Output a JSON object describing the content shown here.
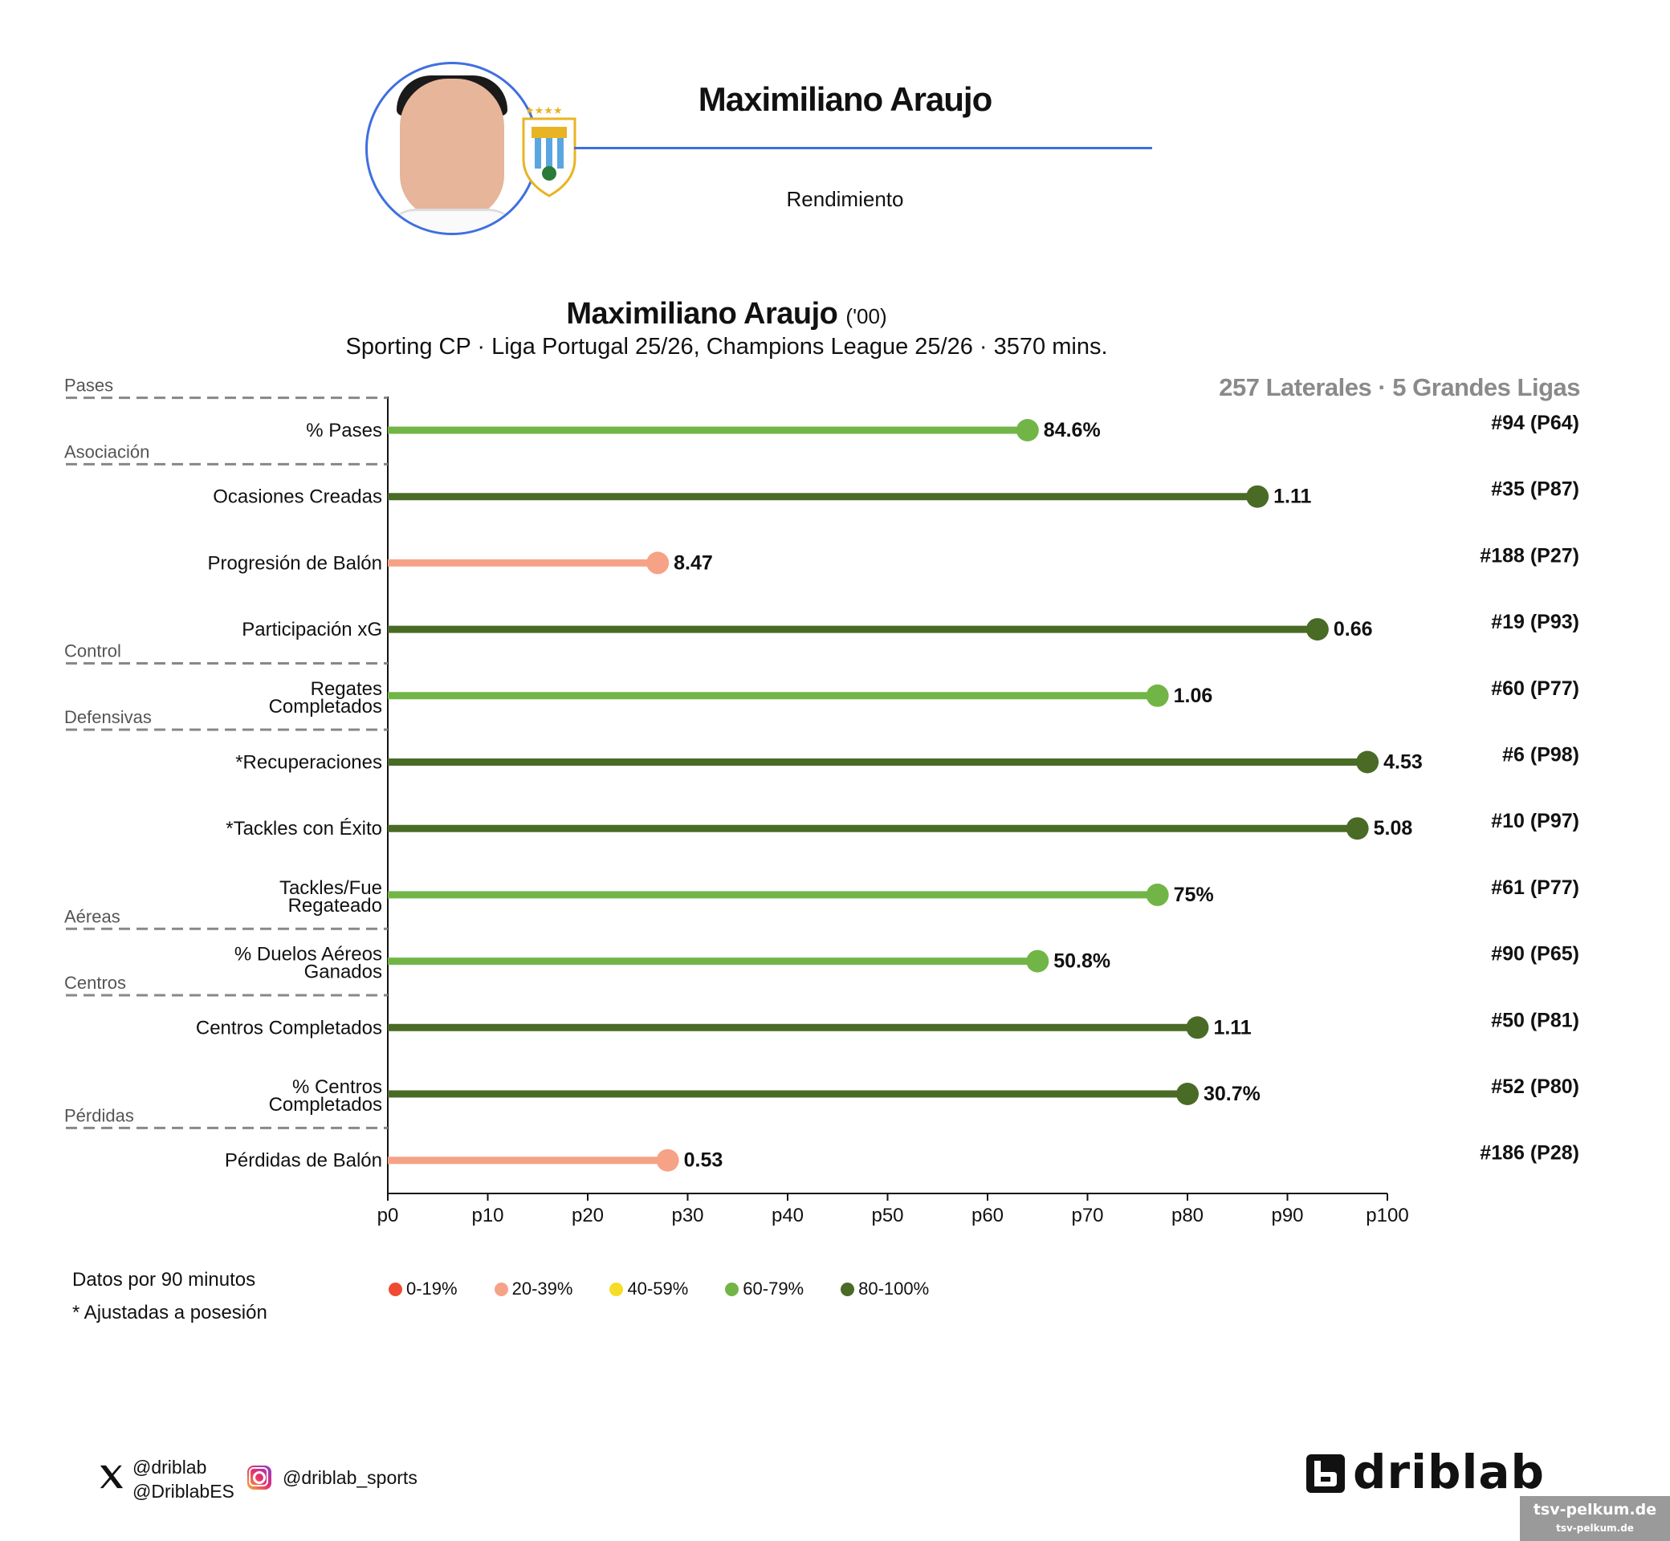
{
  "header": {
    "player_name": "Maximiliano Araujo",
    "subtitle": "Rendimiento"
  },
  "chart_data": {
    "type": "bar",
    "title": "Maximiliano Araujo",
    "title_year": "('00)",
    "subtitle": "Sporting CP · Liga Portugal 25/26, Champions League 25/26 · 3570 mins.",
    "context": "257 Laterales · 5 Grandes Ligas",
    "orientation": "horizontal-lollipop",
    "x_ticks": [
      "p0",
      "p10",
      "p20",
      "p30",
      "p40",
      "p50",
      "p60",
      "p70",
      "p80",
      "p90",
      "p100"
    ],
    "xlim": [
      0,
      100
    ],
    "grid": false,
    "legend_position": "bottom-left",
    "groups": [
      {
        "label": "Pases",
        "before_metric": 0
      },
      {
        "label": "Asociación",
        "before_metric": 1
      },
      {
        "label": "Control",
        "before_metric": 4
      },
      {
        "label": "Defensivas",
        "before_metric": 5
      },
      {
        "label": "Aéreas",
        "before_metric": 8
      },
      {
        "label": "Centros",
        "before_metric": 9
      },
      {
        "label": "Pérdidas",
        "before_metric": 11
      }
    ],
    "metrics": [
      {
        "label": [
          "% Pases"
        ],
        "percentile": 64,
        "value": "84.6%",
        "rank": "#94 (P64)",
        "band": "60-79%"
      },
      {
        "label": [
          "Ocasiones Creadas"
        ],
        "percentile": 87,
        "value": "1.11",
        "rank": "#35 (P87)",
        "band": "80-100%"
      },
      {
        "label": [
          "Progresión de Balón"
        ],
        "percentile": 27,
        "value": "8.47",
        "rank": "#188 (P27)",
        "band": "20-39%"
      },
      {
        "label": [
          "Participación xG"
        ],
        "percentile": 93,
        "value": "0.66",
        "rank": "#19 (P93)",
        "band": "80-100%"
      },
      {
        "label": [
          "Regates",
          "Completados"
        ],
        "percentile": 77,
        "value": "1.06",
        "rank": "#60 (P77)",
        "band": "60-79%"
      },
      {
        "label": [
          "*Recuperaciones"
        ],
        "percentile": 98,
        "value": "4.53",
        "rank": "#6 (P98)",
        "band": "80-100%"
      },
      {
        "label": [
          "*Tackles con Éxito"
        ],
        "percentile": 97,
        "value": "5.08",
        "rank": "#10 (P97)",
        "band": "80-100%"
      },
      {
        "label": [
          "Tackles/Fue",
          "Regateado"
        ],
        "percentile": 77,
        "value": "75%",
        "rank": "#61 (P77)",
        "band": "60-79%"
      },
      {
        "label": [
          "% Duelos Aéreos",
          "Ganados"
        ],
        "percentile": 65,
        "value": "50.8%",
        "rank": "#90 (P65)",
        "band": "60-79%"
      },
      {
        "label": [
          "Centros Completados"
        ],
        "percentile": 81,
        "value": "1.11",
        "rank": "#50 (P81)",
        "band": "80-100%"
      },
      {
        "label": [
          "% Centros",
          "Completados"
        ],
        "percentile": 80,
        "value": "30.7%",
        "rank": "#52 (P80)",
        "band": "80-100%"
      },
      {
        "label": [
          "Pérdidas de Balón"
        ],
        "percentile": 28,
        "value": "0.53",
        "rank": "#186 (P28)",
        "band": "20-39%"
      }
    ],
    "legend": [
      {
        "label": "0-19%",
        "color": "#ef4b32"
      },
      {
        "label": "20-39%",
        "color": "#f6a287"
      },
      {
        "label": "40-59%",
        "color": "#f7dc27"
      },
      {
        "label": "60-79%",
        "color": "#72b547"
      },
      {
        "label": "80-100%",
        "color": "#496b26"
      }
    ]
  },
  "notes": {
    "line1": "Datos por 90 minutos",
    "line2": "* Ajustadas a posesión"
  },
  "footer": {
    "twitter_handle_1": "@driblab",
    "twitter_handle_2": "@DriblabES",
    "instagram_handle": "@driblab_sports",
    "brand": "driblab",
    "watermark_1": "tsv-pelkum.de",
    "watermark_2": "tsv-pelkum.de"
  },
  "icons": [
    "x-icon",
    "instagram-icon",
    "driblab-logo-icon",
    "uruguay-crest-icon"
  ],
  "colors": {
    "accent": "#3f6fe0",
    "context_gray": "#8a8a8a",
    "group_rule": "#888888"
  }
}
